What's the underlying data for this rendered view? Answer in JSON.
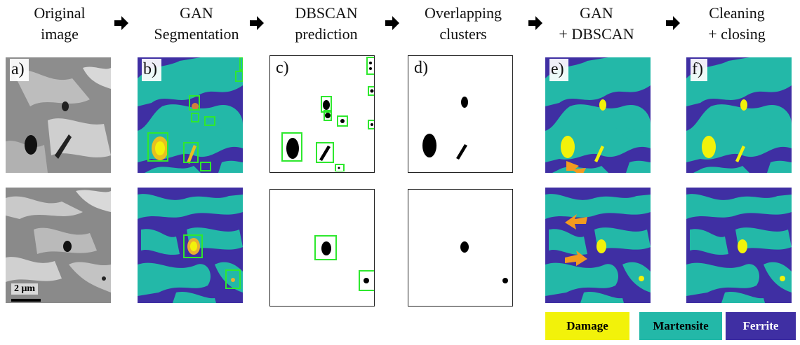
{
  "headers": [
    {
      "line1": "Original",
      "line2": "image"
    },
    {
      "line1": "GAN",
      "line2": "Segmentation"
    },
    {
      "line1": "DBSCAN",
      "line2": "prediction"
    },
    {
      "line1": "Overlapping",
      "line2": "clusters"
    },
    {
      "line1": "GAN",
      "line2": "+ DBSCAN"
    },
    {
      "line1": "Cleaning",
      "line2": "+ closing"
    }
  ],
  "panel_labels": [
    "a)",
    "b)",
    "c)",
    "d)",
    "e)",
    "f)"
  ],
  "scale_bar": "2 μm",
  "legend": [
    {
      "label": "Damage",
      "color": "#f2f20a"
    },
    {
      "label": "Martensite",
      "color": "#23b8a8"
    },
    {
      "label": "Ferrite",
      "color": "#3f2fa3"
    }
  ],
  "colors": {
    "ferrite": "#3f2fa3",
    "martensite": "#23b8a8",
    "damage": "#f2f20a",
    "box": "#2ee82e",
    "orange_arrow": "#f39a1f"
  }
}
